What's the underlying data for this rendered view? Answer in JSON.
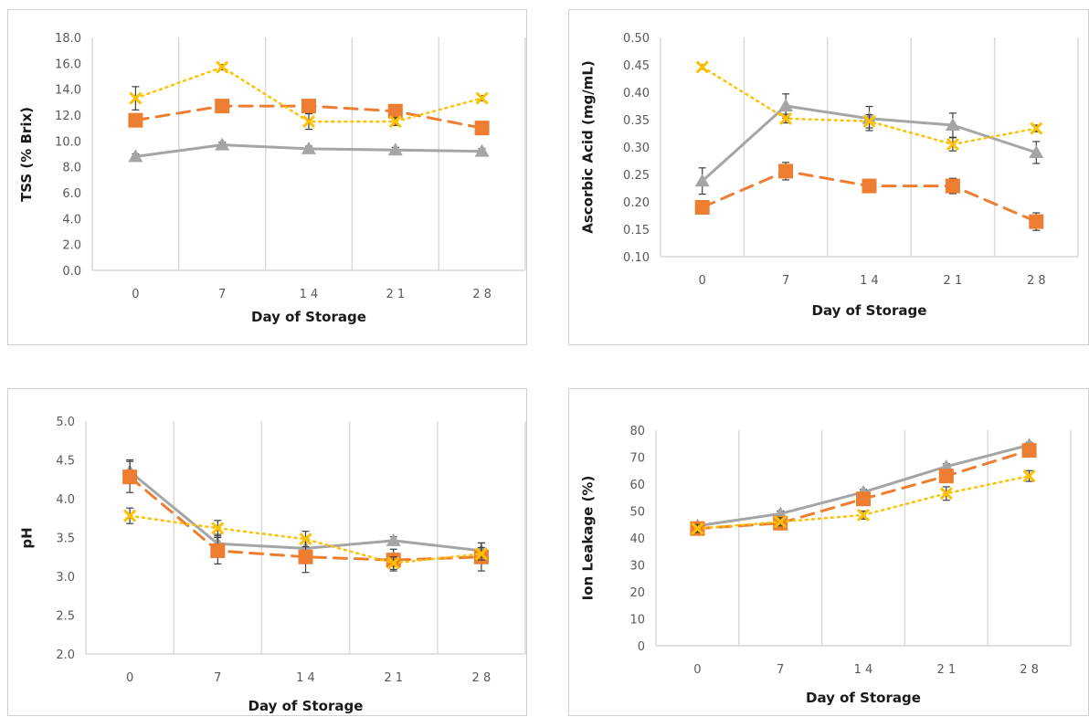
{
  "series_styles": [
    {
      "color": "#A5A5A5",
      "dash": "",
      "marker": "triangle",
      "width": 3
    },
    {
      "color": "#ED7D31",
      "dash": "14,9",
      "marker": "square",
      "width": 3
    },
    {
      "color": "#FFC000",
      "dash": "2,5",
      "marker": "x",
      "width": 2.5
    }
  ],
  "error_bar_color": "#404040",
  "chart_data": [
    {
      "type": "line",
      "xlabel": "Day of Storage",
      "ylabel": "TSS (% Brix)",
      "categories": [
        "0",
        "7",
        "14",
        "21",
        "28"
      ],
      "ylim": [
        0,
        18
      ],
      "ytick_step": 2,
      "ytick_labels": [
        "0.0",
        "2.0",
        "4.0",
        "6.0",
        "8.0",
        "10.0",
        "12.0",
        "14.0",
        "16.0",
        "18.0"
      ],
      "xtick_labels": [
        "0",
        "7",
        "1 4",
        "2 1",
        "2 8"
      ],
      "series": [
        {
          "values": [
            8.8,
            9.7,
            9.4,
            9.3,
            9.2
          ],
          "errors": [
            0.2,
            0.2,
            0.2,
            0.2,
            0.2
          ]
        },
        {
          "values": [
            11.6,
            12.7,
            12.7,
            12.3,
            11.0
          ],
          "errors": [
            0.3,
            0.3,
            0.3,
            0.3,
            0.3
          ]
        },
        {
          "values": [
            13.3,
            15.7,
            11.5,
            11.5,
            13.3
          ],
          "errors": [
            0.9,
            0.2,
            0.6,
            0.3,
            0.2
          ]
        }
      ]
    },
    {
      "type": "line",
      "xlabel": "Day of Storage",
      "ylabel": "Ascorbic Acid (mg/mL)",
      "categories": [
        "0",
        "7",
        "14",
        "21",
        "28"
      ],
      "ylim": [
        0.1,
        0.5
      ],
      "ytick_step": 0.05,
      "ytick_labels": [
        "0.10",
        "0.15",
        "0.20",
        "0.25",
        "0.30",
        "0.35",
        "0.40",
        "0.45",
        "0.50"
      ],
      "xtick_labels": [
        "0",
        "7",
        "1 4",
        "2 1",
        "2 8"
      ],
      "series": [
        {
          "values": [
            0.238,
            0.375,
            0.352,
            0.34,
            0.29
          ],
          "errors": [
            0.024,
            0.022,
            0.022,
            0.022,
            0.02
          ]
        },
        {
          "values": [
            0.19,
            0.256,
            0.229,
            0.229,
            0.164
          ],
          "errors": [
            0.012,
            0.016,
            0.012,
            0.014,
            0.016
          ]
        },
        {
          "values": [
            0.446,
            0.352,
            0.347,
            0.305,
            0.334
          ],
          "errors": [
            0.004,
            0.008,
            0.012,
            0.012,
            0.006
          ]
        }
      ]
    },
    {
      "type": "line",
      "xlabel": "Day of Storage",
      "ylabel": "pH",
      "categories": [
        "0",
        "7",
        "14",
        "21",
        "28"
      ],
      "ylim": [
        2.0,
        5.0
      ],
      "ytick_step": 0.5,
      "ytick_labels": [
        "2.0",
        "2.5",
        "3.0",
        "3.5",
        "4.0",
        "4.5",
        "5.0"
      ],
      "xtick_labels": [
        "0",
        "7",
        "1 4",
        "2 1",
        "2 8"
      ],
      "series": [
        {
          "values": [
            4.35,
            3.42,
            3.36,
            3.46,
            3.33
          ],
          "errors": [
            0.15,
            0.12,
            0.12,
            0.05,
            0.1
          ]
        },
        {
          "values": [
            4.28,
            3.33,
            3.25,
            3.21,
            3.25
          ],
          "errors": [
            0.2,
            0.17,
            0.2,
            0.14,
            0.18
          ]
        },
        {
          "values": [
            3.78,
            3.62,
            3.48,
            3.17,
            3.29
          ],
          "errors": [
            0.1,
            0.1,
            0.1,
            0.08,
            0.08
          ]
        }
      ]
    },
    {
      "type": "line",
      "xlabel": "Day of Storage",
      "ylabel": "Ion Leakage (%)",
      "categories": [
        "0",
        "7",
        "14",
        "21",
        "28"
      ],
      "ylim": [
        0,
        80
      ],
      "ytick_step": 10,
      "ytick_labels": [
        "0",
        "10",
        "20",
        "30",
        "40",
        "50",
        "60",
        "70",
        "80"
      ],
      "xtick_labels": [
        "0",
        "7",
        "1 4",
        "2 1",
        "2 8"
      ],
      "series": [
        {
          "values": [
            44.5,
            49.0,
            57.0,
            66.5,
            74.5
          ],
          "errors": [
            1.0,
            1.0,
            1.0,
            1.0,
            1.0
          ]
        },
        {
          "values": [
            43.5,
            45.5,
            54.5,
            63.0,
            72.5
          ],
          "errors": [
            1.0,
            1.0,
            1.0,
            1.0,
            1.0
          ]
        },
        {
          "values": [
            43.5,
            46.0,
            48.5,
            56.5,
            63.0
          ],
          "errors": [
            1.5,
            1.5,
            1.5,
            2.5,
            2.0
          ]
        }
      ]
    }
  ]
}
